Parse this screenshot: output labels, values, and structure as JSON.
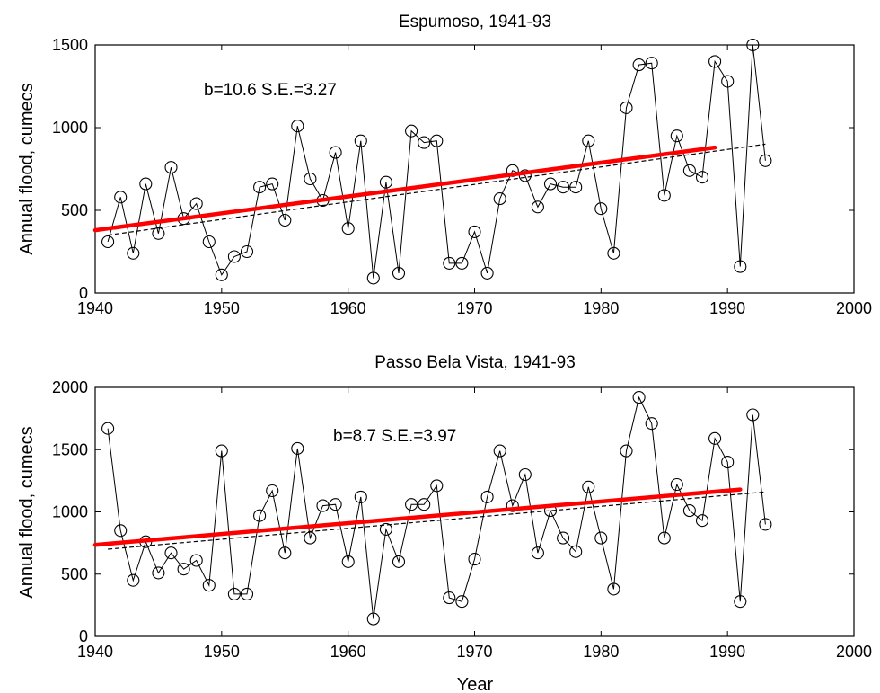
{
  "chart_data": [
    {
      "type": "line",
      "title": "Espumoso, 1941-93",
      "xlabel": "",
      "ylabel": "Annual flood, cumecs",
      "xlim": [
        1940,
        2000
      ],
      "ylim": [
        0,
        1500
      ],
      "xticks": [
        "1940",
        "1950",
        "1960",
        "1970",
        "1980",
        "1990",
        "2000"
      ],
      "yticks": [
        "0",
        "500",
        "1000",
        "1500"
      ],
      "annotation": "b=10.6 S.E.=3.27",
      "grid": false,
      "series": [
        {
          "kind": "observed",
          "color": "#000000",
          "marker": "circle",
          "x": [
            1941,
            1942,
            1943,
            1944,
            1945,
            1946,
            1947,
            1948,
            1949,
            1950,
            1951,
            1952,
            1953,
            1954,
            1955,
            1956,
            1957,
            1958,
            1959,
            1960,
            1961,
            1962,
            1963,
            1964,
            1965,
            1966,
            1967,
            1968,
            1969,
            1970,
            1971,
            1972,
            1973,
            1974,
            1975,
            1976,
            1977,
            1978,
            1979,
            1980,
            1981,
            1982,
            1983,
            1984,
            1985,
            1986,
            1987,
            1988,
            1989,
            1990,
            1991,
            1992,
            1993
          ],
          "y": [
            310,
            580,
            240,
            660,
            360,
            760,
            450,
            540,
            310,
            110,
            220,
            250,
            640,
            660,
            440,
            1010,
            690,
            560,
            850,
            390,
            920,
            90,
            670,
            120,
            980,
            910,
            920,
            180,
            180,
            370,
            120,
            570,
            740,
            710,
            520,
            660,
            640,
            640,
            920,
            510,
            240,
            1120,
            1380,
            1390,
            590,
            950,
            740,
            700,
            1400,
            1280,
            160,
            1500,
            800
          ]
        },
        {
          "kind": "trend",
          "color": "#ff0000",
          "x": [
            1940,
            1989
          ],
          "y": [
            380,
            880
          ]
        },
        {
          "kind": "fit",
          "color": "#000000",
          "style": "dashed",
          "x": [
            1941,
            1993
          ],
          "y": [
            350,
            900
          ]
        }
      ]
    },
    {
      "type": "line",
      "title": "Passo Bela Vista, 1941-93",
      "xlabel": "Year",
      "ylabel": "Annual flood, cumecs",
      "xlim": [
        1940,
        2000
      ],
      "ylim": [
        0,
        2000
      ],
      "xticks": [
        "1940",
        "1950",
        "1960",
        "1970",
        "1980",
        "1990",
        "2000"
      ],
      "yticks": [
        "0",
        "500",
        "1000",
        "1500",
        "2000"
      ],
      "annotation": "b=8.7 S.E.=3.97",
      "grid": false,
      "series": [
        {
          "kind": "observed",
          "color": "#000000",
          "marker": "circle",
          "x": [
            1941,
            1942,
            1943,
            1944,
            1945,
            1946,
            1947,
            1948,
            1949,
            1950,
            1951,
            1952,
            1953,
            1954,
            1955,
            1956,
            1957,
            1958,
            1959,
            1960,
            1961,
            1962,
            1963,
            1964,
            1965,
            1966,
            1967,
            1968,
            1969,
            1970,
            1971,
            1972,
            1973,
            1974,
            1975,
            1976,
            1977,
            1978,
            1979,
            1980,
            1981,
            1982,
            1983,
            1984,
            1985,
            1986,
            1987,
            1988,
            1989,
            1990,
            1991,
            1992,
            1993
          ],
          "y": [
            1670,
            850,
            450,
            760,
            510,
            670,
            540,
            610,
            410,
            1490,
            340,
            340,
            970,
            1170,
            670,
            1510,
            790,
            1050,
            1060,
            600,
            1120,
            140,
            860,
            600,
            1060,
            1060,
            1210,
            310,
            280,
            620,
            1120,
            1490,
            1050,
            1300,
            670,
            1010,
            790,
            680,
            1200,
            790,
            380,
            1490,
            1920,
            1710,
            790,
            1220,
            1010,
            930,
            1590,
            1400,
            280,
            1780,
            900
          ]
        },
        {
          "kind": "trend",
          "color": "#ff0000",
          "x": [
            1940,
            1991
          ],
          "y": [
            735,
            1180
          ]
        },
        {
          "kind": "fit",
          "color": "#000000",
          "style": "dashed",
          "x": [
            1941,
            1993
          ],
          "y": [
            700,
            1160
          ]
        }
      ]
    }
  ]
}
